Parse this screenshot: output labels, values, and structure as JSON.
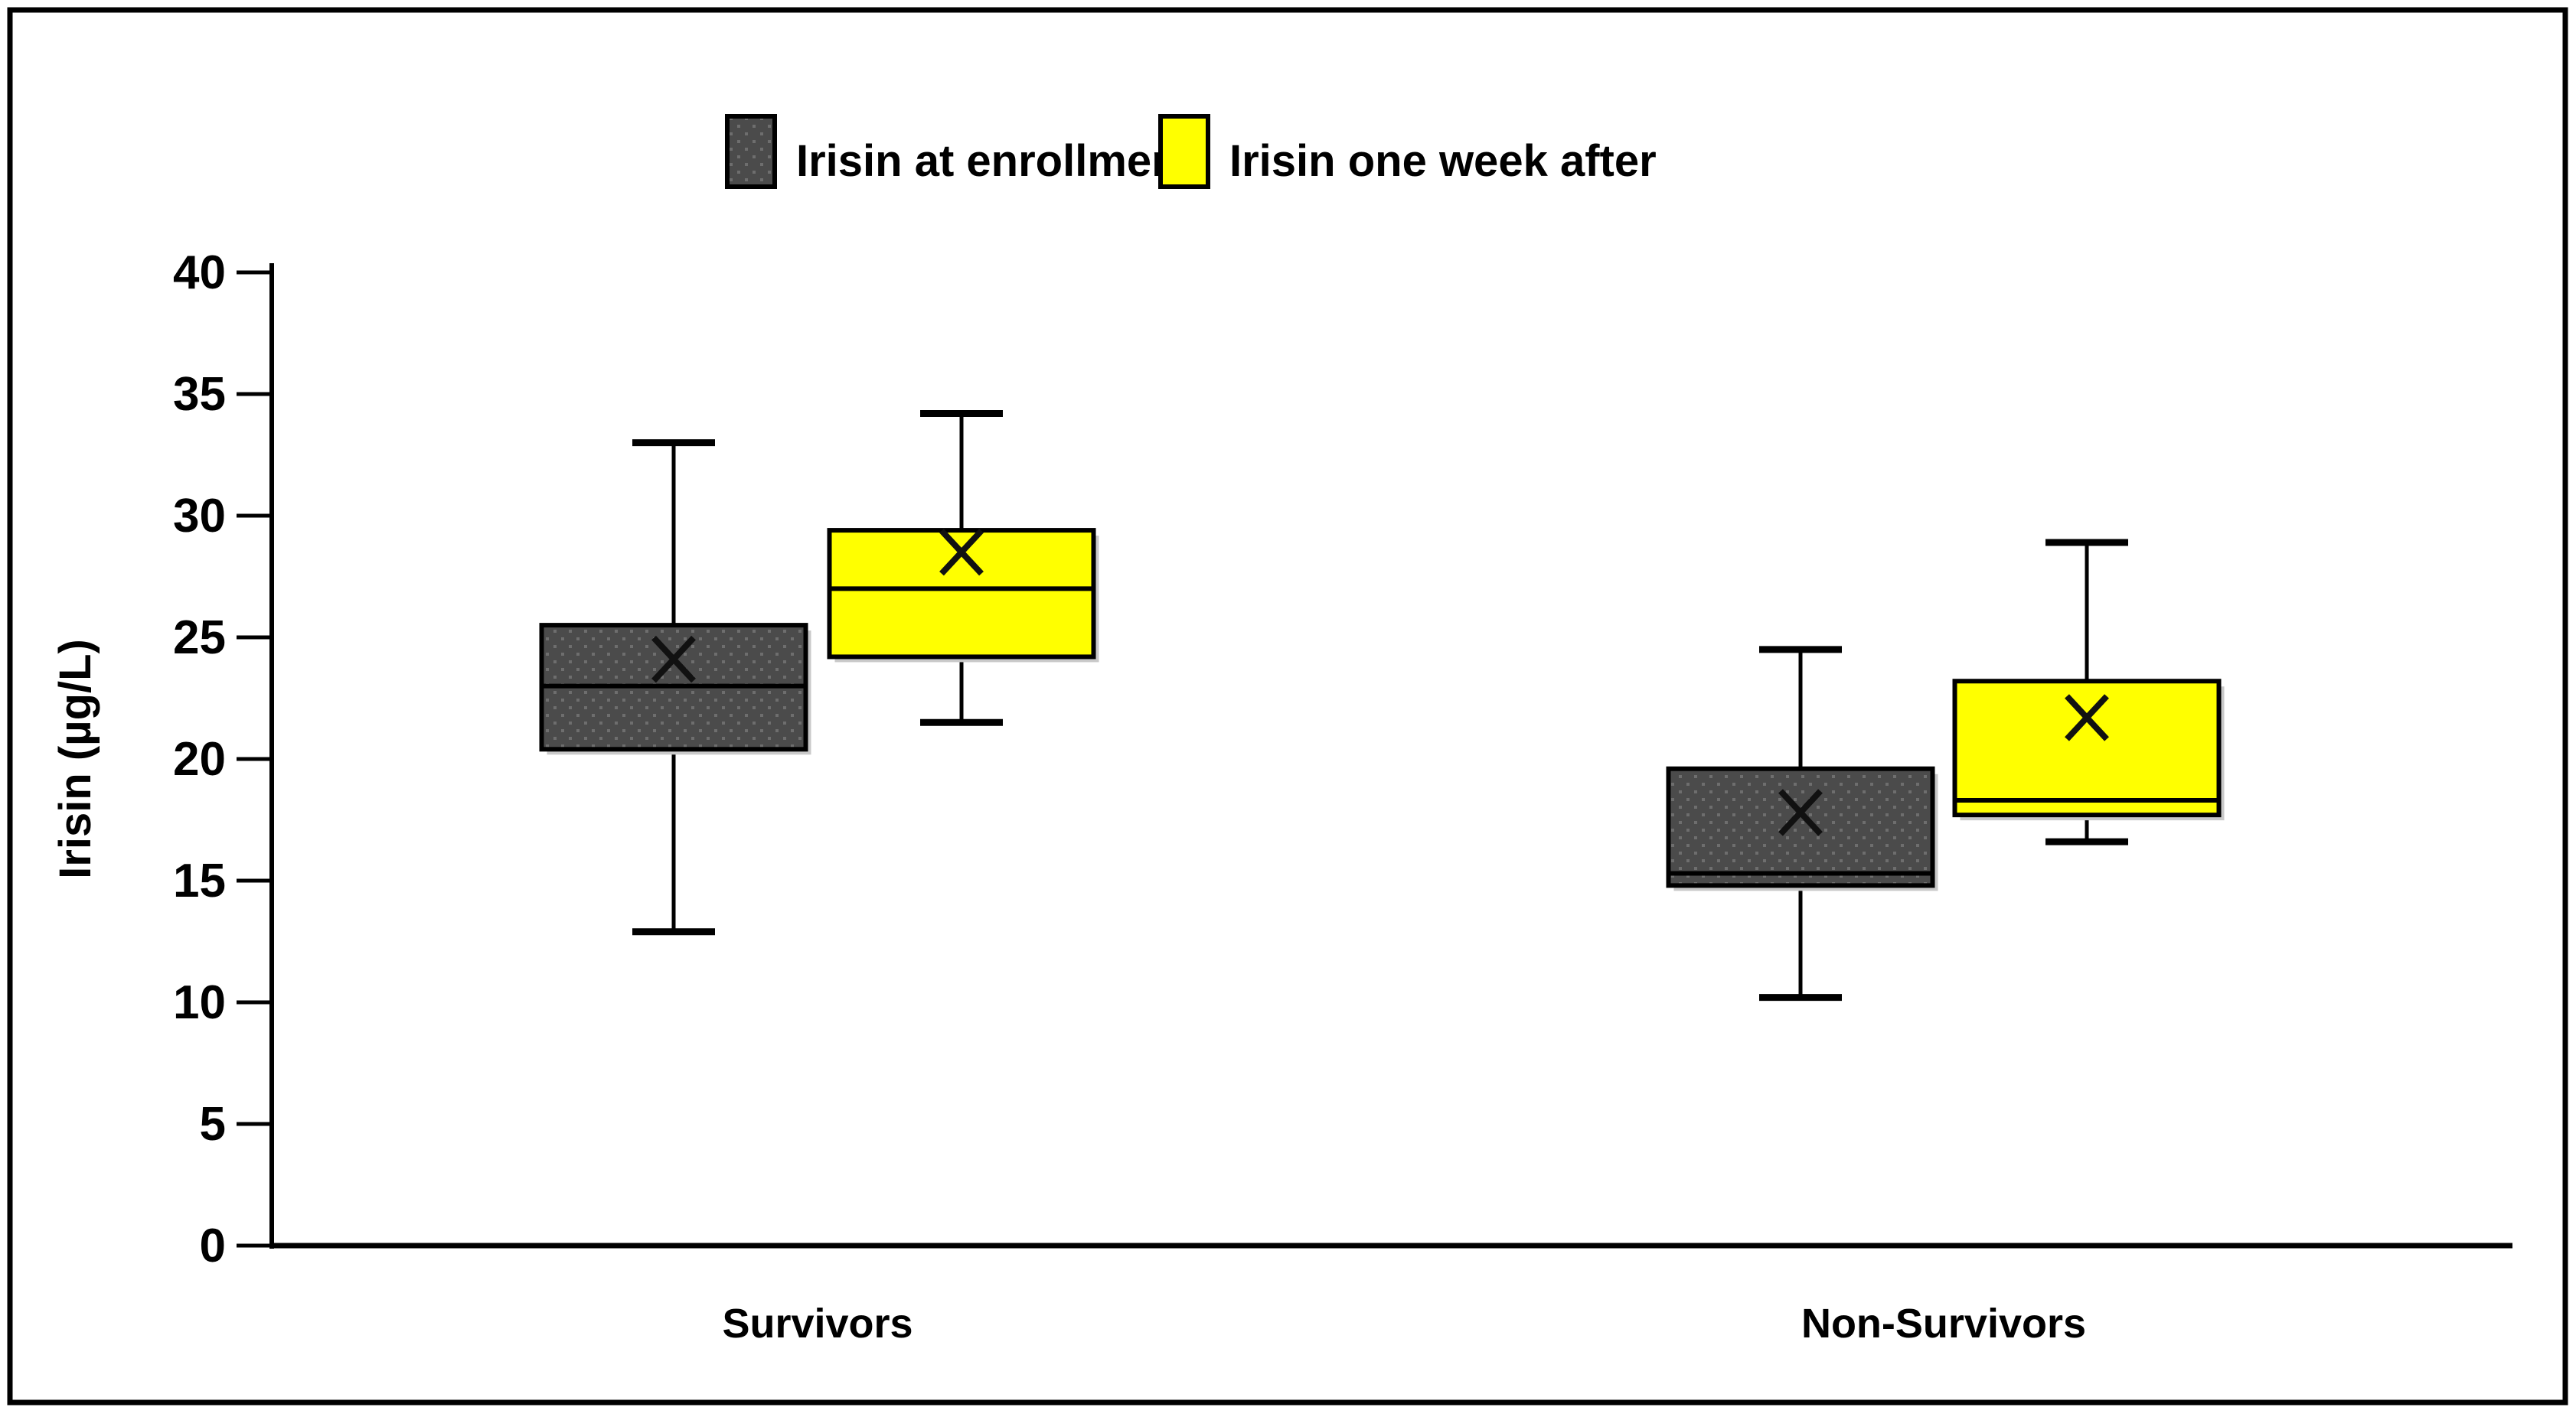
{
  "figure": {
    "background_color": "#ffffff",
    "border_color": "#000000"
  },
  "legend": {
    "position": "top-center",
    "items": [
      {
        "label": "Irisin at enrollment",
        "color": "#4b4b4b",
        "pattern": "dots"
      },
      {
        "label": "Irisin one week after",
        "color": "#ffff00",
        "pattern": "solid"
      }
    ]
  },
  "chart_data": {
    "type": "boxplot",
    "title": "",
    "xlabel": "",
    "ylabel": "Irisin (µg/L)",
    "ylim": [
      0,
      40
    ],
    "yticks": [
      0,
      5,
      10,
      15,
      20,
      25,
      30,
      35,
      40
    ],
    "grid": false,
    "categories": [
      "Survivors",
      "Non-Survivors"
    ],
    "mean_marker": "x",
    "series": [
      {
        "name": "Irisin at enrollment",
        "color": "#4b4b4b",
        "boxes": [
          {
            "category": "Survivors",
            "min": 12.9,
            "q1": 20.4,
            "median": 23.0,
            "q3": 25.5,
            "max": 33.0,
            "mean": 24.1
          },
          {
            "category": "Non-Survivors",
            "min": 10.2,
            "q1": 14.8,
            "median": 15.3,
            "q3": 19.6,
            "max": 24.5,
            "mean": 17.8
          }
        ]
      },
      {
        "name": "Irisin one week after",
        "color": "#ffff00",
        "boxes": [
          {
            "category": "Survivors",
            "min": 21.5,
            "q1": 24.2,
            "median": 27.0,
            "q3": 29.4,
            "max": 34.2,
            "mean": 28.5
          },
          {
            "category": "Non-Survivors",
            "min": 16.6,
            "q1": 17.7,
            "median": 18.3,
            "q3": 23.2,
            "max": 28.9,
            "mean": 21.7
          }
        ]
      }
    ]
  }
}
